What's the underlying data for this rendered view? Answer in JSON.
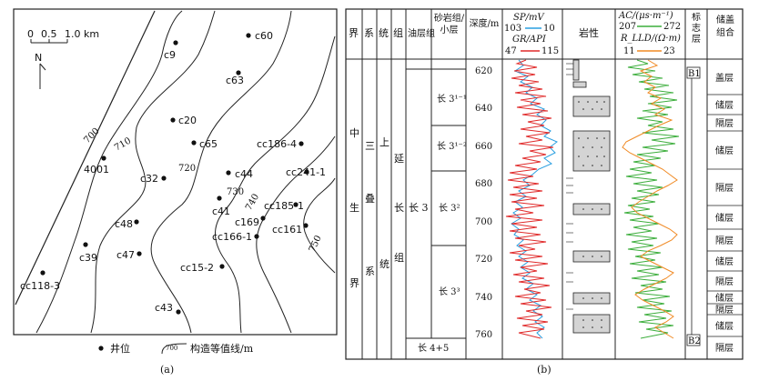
{
  "panel_a": {
    "caption": "(a)",
    "scale": {
      "label": "1.0 km",
      "ticks": [
        "0",
        "0.5"
      ]
    },
    "north": "N",
    "contour_labels": [
      "700",
      "710",
      "720",
      "730",
      "740",
      "750"
    ],
    "wells": [
      {
        "name": "c60"
      },
      {
        "name": "c9"
      },
      {
        "name": "c63"
      },
      {
        "name": "c20"
      },
      {
        "name": "c65"
      },
      {
        "name": "cc186-4"
      },
      {
        "name": "4001"
      },
      {
        "name": "c32"
      },
      {
        "name": "c44"
      },
      {
        "name": "cc241-1"
      },
      {
        "name": "c41"
      },
      {
        "name": "cc185-1"
      },
      {
        "name": "c169"
      },
      {
        "name": "c48"
      },
      {
        "name": "cc166-1"
      },
      {
        "name": "cc161"
      },
      {
        "name": "c39"
      },
      {
        "name": "c47"
      },
      {
        "name": "cc15-2"
      },
      {
        "name": "cc118-3"
      },
      {
        "name": "c43"
      }
    ],
    "legend": {
      "well": "井位",
      "contour": "构造等值线/m",
      "contour_sample": "700"
    }
  },
  "panel_b": {
    "caption": "(b)",
    "headers": {
      "jie": "界",
      "xi": "系",
      "tong": "统",
      "zu": "组",
      "youcengzu": "油层组",
      "shayanzu": "砂岩组/小层",
      "depth": "深度/m",
      "sp_label": "SP/mV",
      "sp_range": [
        "103",
        "10"
      ],
      "gr_label": "GR/API",
      "gr_range": [
        "47",
        "115"
      ],
      "lith": "岩性",
      "ac_label": "AC/(μs·m⁻¹)",
      "ac_range": [
        "207",
        "272"
      ],
      "rlld_label": "R_LLD/(Ω·m)",
      "rlld_range": [
        "11",
        "23"
      ],
      "marker": "标志层",
      "reservoir": "储盖组合"
    },
    "strat": {
      "jie": [
        "中",
        "生",
        "界"
      ],
      "xi": [
        "三",
        "叠",
        "系"
      ],
      "tong": [
        "上",
        "统"
      ],
      "zu": [
        "延",
        "长",
        "组"
      ],
      "youcengzu": "长 3",
      "sub_layers": [
        "长 3¹⁻¹",
        "长 3¹⁻²",
        "长 3²",
        "长 3³"
      ],
      "bottom": "长 4+5"
    },
    "depth_ticks": [
      "620",
      "640",
      "660",
      "680",
      "700",
      "720",
      "740",
      "760"
    ],
    "markers": [
      "B1",
      "B2"
    ],
    "reservoir_layers": [
      "盖层",
      "储层",
      "隔层",
      "储层",
      "隔层",
      "储层",
      "隔层",
      "储层",
      "隔层",
      "储层",
      "隔层",
      "储层",
      "隔层"
    ],
    "colors": {
      "sp": "#2a9fe0",
      "gr": "#e02a2a",
      "ac": "#3cae3c",
      "rlld": "#f08a24"
    }
  }
}
